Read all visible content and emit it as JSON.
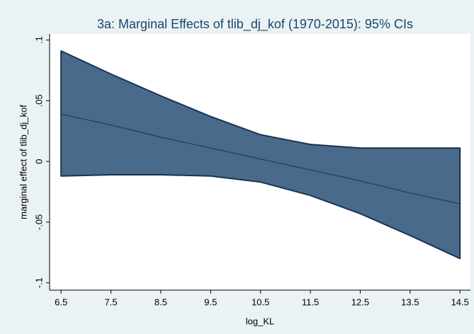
{
  "chart_data": {
    "type": "band-line",
    "title": "3a: Marginal Effects of tlib_dj_kof (1970-2015): 95% CIs",
    "xlabel": "log_KL",
    "ylabel": "marginal effect of tlib_dj_kof",
    "x": [
      6.5,
      7.5,
      8.5,
      9.5,
      10.5,
      11.5,
      12.5,
      13.5,
      14.5
    ],
    "values": [
      0.039,
      0.03,
      0.02,
      0.011,
      0.002,
      -0.007,
      -0.016,
      -0.026,
      -0.035
    ],
    "ci_upper": [
      0.091,
      0.072,
      0.054,
      0.037,
      0.022,
      0.014,
      0.011,
      0.011,
      0.011
    ],
    "ci_lower": [
      -0.012,
      -0.011,
      -0.011,
      -0.012,
      -0.017,
      -0.028,
      -0.043,
      -0.061,
      -0.08
    ],
    "color": "#1a3350",
    "band_color": "#4a6a8c",
    "xlim": [
      6.27,
      14.71
    ],
    "ylim": [
      -0.106,
      0.105
    ],
    "xticks": [
      6.5,
      7.5,
      8.5,
      9.5,
      10.5,
      11.5,
      12.5,
      13.5,
      14.5
    ],
    "yticks": [
      {
        "value": -0.1,
        "label": "-.1"
      },
      {
        "value": -0.05,
        "label": "-.05"
      },
      {
        "value": 0,
        "label": "0"
      },
      {
        "value": 0.05,
        "label": ".05"
      },
      {
        "value": 0.1,
        "label": ".1"
      }
    ],
    "grid": false
  }
}
